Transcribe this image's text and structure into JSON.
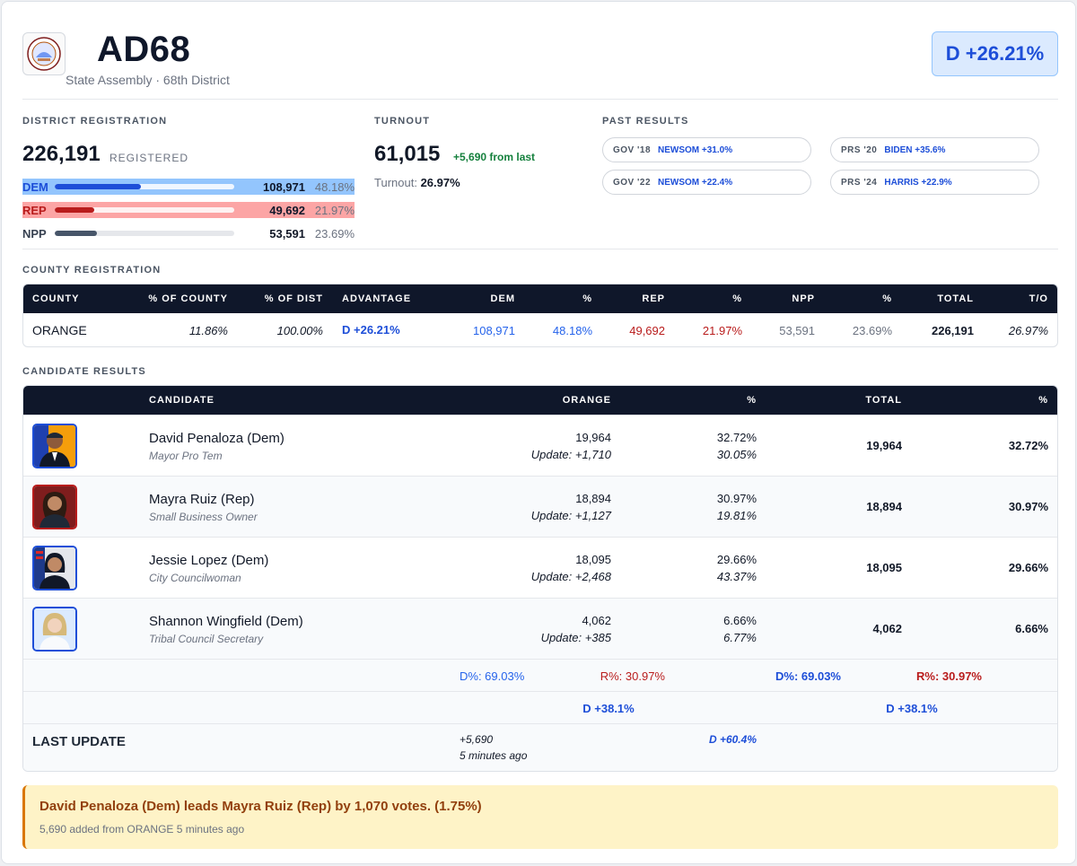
{
  "header": {
    "district_code": "AD68",
    "district_name": "State Assembly · 68th District",
    "advantage": "D +26.21%"
  },
  "registration": {
    "label": "DISTRICT REGISTRATION",
    "total": "226,191",
    "total_label": "REGISTERED",
    "parties": [
      {
        "label": "DEM",
        "value": "108,971",
        "pct": "48.18%",
        "share": 0.4818,
        "color": "#1d4ed8"
      },
      {
        "label": "REP",
        "value": "49,692",
        "pct": "21.97%",
        "share": 0.2197,
        "color": "#b91c1c"
      },
      {
        "label": "NPP",
        "value": "53,591",
        "pct": "23.69%",
        "share": 0.2369,
        "color": "#475569"
      }
    ]
  },
  "turnout": {
    "label": "TURNOUT",
    "votes": "61,015",
    "delta": "+5,690 from last",
    "rate_label": "Turnout:",
    "rate": "26.97%"
  },
  "past_results": {
    "label": "PAST RESULTS",
    "items": [
      {
        "race": "GOV '18",
        "result": "NEWSOM +31.0%"
      },
      {
        "race": "PRS '20",
        "result": "BIDEN +35.6%"
      },
      {
        "race": "GOV '22",
        "result": "NEWSOM +22.4%"
      },
      {
        "race": "PRS '24",
        "result": "HARRIS +22.9%"
      }
    ]
  },
  "county_registration": {
    "label": "COUNTY REGISTRATION",
    "headers": [
      "COUNTY",
      "% OF COUNTY",
      "% OF DIST",
      "ADVANTAGE",
      "DEM",
      "%",
      "REP",
      "%",
      "NPP",
      "%",
      "TOTAL",
      "T/O"
    ],
    "row": {
      "county": "ORANGE",
      "pct_county": "11.86%",
      "pct_dist": "100.00%",
      "advantage": "D +26.21%",
      "dem": "108,971",
      "dem_pct": "48.18%",
      "rep": "49,692",
      "rep_pct": "21.97%",
      "npp": "53,591",
      "npp_pct": "23.69%",
      "total": "226,191",
      "turnout": "26.97%"
    }
  },
  "candidate_results": {
    "label": "CANDIDATE RESULTS",
    "headers": [
      "CANDIDATE",
      "ORANGE",
      "%",
      "TOTAL",
      "%"
    ],
    "candidates": [
      {
        "name": "David Penaloza (Dem)",
        "title": "Mayor Pro Tem",
        "party": "Dem",
        "county_votes": "19,964",
        "update": "Update: +1,710",
        "pct": "32.72%",
        "update_pct": "30.05%",
        "total": "19,964",
        "total_pct": "32.72%"
      },
      {
        "name": "Mayra Ruiz (Rep)",
        "title": "Small Business Owner",
        "party": "Rep",
        "county_votes": "18,894",
        "update": "Update: +1,127",
        "pct": "30.97%",
        "update_pct": "19.81%",
        "total": "18,894",
        "total_pct": "30.97%"
      },
      {
        "name": "Jessie Lopez (Dem)",
        "title": "City Councilwoman",
        "party": "Dem",
        "county_votes": "18,095",
        "update": "Update: +2,468",
        "pct": "29.66%",
        "update_pct": "43.37%",
        "total": "18,095",
        "total_pct": "29.66%"
      },
      {
        "name": "Shannon Wingfield (Dem)",
        "title": "Tribal Council Secretary",
        "party": "Dem",
        "county_votes": "4,062",
        "update": "Update: +385",
        "pct": "6.66%",
        "update_pct": "6.77%",
        "total": "4,062",
        "total_pct": "6.66%"
      }
    ],
    "summary": {
      "county_d": "D%: 69.03%",
      "county_r": "R%: 30.97%",
      "total_d": "D%: 69.03%",
      "total_r": "R%: 30.97%",
      "county_margin": "D +38.1%",
      "total_margin": "D +38.1%"
    },
    "last_update": {
      "label": "LAST UPDATE",
      "votes": "+5,690",
      "time": "5 minutes ago",
      "margin": "D +60.4%"
    }
  },
  "alert": {
    "headline": "David Penaloza (Dem) leads Mayra Ruiz (Rep) by 1,070 votes. (1.75%)",
    "detail": "5,690 added from ORANGE 5 minutes ago"
  }
}
